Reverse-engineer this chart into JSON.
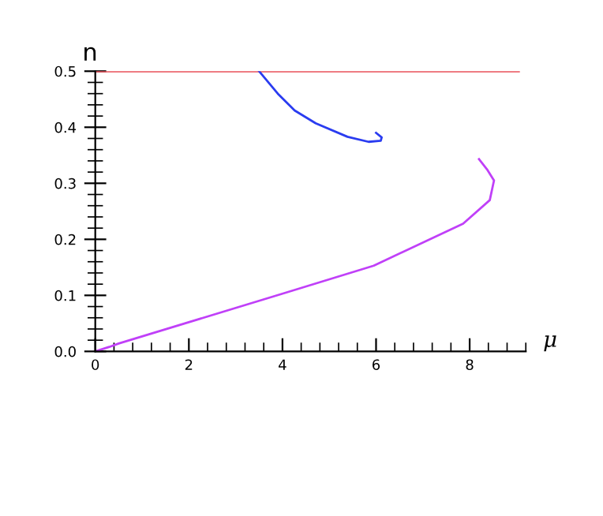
{
  "chart_data": {
    "type": "line",
    "xlabel": "μ",
    "ylabel": "n",
    "xlim": [
      0,
      9.2
    ],
    "ylim": [
      0,
      0.5
    ],
    "xticks": [
      0,
      2,
      4,
      6,
      8
    ],
    "yticks": [
      {
        "value": 0,
        "label": "0.0"
      },
      {
        "value": 0.1,
        "label": "0.1"
      },
      {
        "value": 0.2,
        "label": "0.2"
      },
      {
        "value": 0.3,
        "label": "0.3"
      },
      {
        "value": 0.4,
        "label": "0.4"
      },
      {
        "value": 0.5,
        "label": "0.5"
      }
    ],
    "grid": false,
    "legend": false,
    "series": [
      {
        "color": "#e8505a",
        "x": [
          0,
          9.05
        ],
        "values": [
          0.5,
          0.5
        ]
      },
      {
        "color": "#2a3cf0",
        "x": [
          3.5,
          3.9,
          4.26,
          4.71,
          5.39,
          5.84,
          6.1,
          6.12,
          6.0
        ],
        "values": [
          0.5,
          0.46,
          0.43,
          0.407,
          0.383,
          0.374,
          0.376,
          0.382,
          0.39
        ]
      },
      {
        "color": "#c040f8",
        "x": [
          0,
          0.3,
          0.5,
          4.04,
          5.95,
          7.86,
          8.43,
          8.52,
          8.37,
          8.2
        ],
        "values": [
          0,
          0.008,
          0.014,
          0.104,
          0.153,
          0.228,
          0.27,
          0.305,
          0.325,
          0.343
        ]
      }
    ]
  }
}
